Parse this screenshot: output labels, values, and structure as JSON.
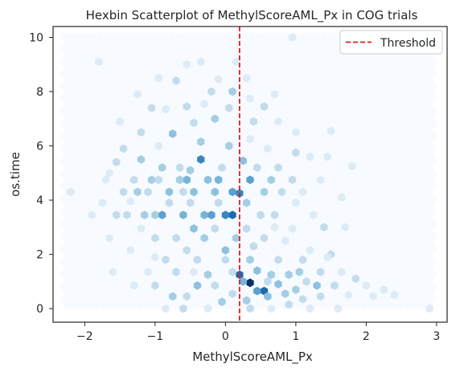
{
  "chart_data": {
    "type": "scatter",
    "subtype": "hexbin",
    "title": "Hexbin Scatterplot of MethylScoreAML_Px in COG trials",
    "xlabel": "MethylScoreAML_Px",
    "ylabel": "os.time",
    "xlim": [
      -2.45,
      3.15
    ],
    "ylim": [
      -0.5,
      10.4
    ],
    "xticks": [
      -2,
      -1,
      0,
      1,
      2,
      3
    ],
    "xtick_labels": [
      "−2",
      "−1",
      "0",
      "1",
      "2",
      "3"
    ],
    "yticks": [
      0,
      2,
      4,
      6,
      8,
      10
    ],
    "ytick_labels": [
      "0",
      "2",
      "4",
      "6",
      "8",
      "10"
    ],
    "grid": false,
    "colormap": "Blues",
    "hexbin_extent": {
      "x": [
        -2.3,
        2.95
      ],
      "y": [
        -0.05,
        10.05
      ]
    },
    "threshold": {
      "x": 0.2,
      "name": "Threshold",
      "color": "#e31a1c",
      "style": "dashed"
    },
    "legend": {
      "position": "top-right",
      "entries": [
        "Threshold"
      ]
    },
    "max_count": 10,
    "bins": [
      {
        "x": 0.35,
        "y": 0.95,
        "c": 10
      },
      {
        "x": 0.2,
        "y": 1.25,
        "c": 8
      },
      {
        "x": 0.55,
        "y": 0.65,
        "c": 8
      },
      {
        "x": 0.1,
        "y": 3.45,
        "c": 8
      },
      {
        "x": 0.0,
        "y": 3.45,
        "c": 7
      },
      {
        "x": -0.35,
        "y": 5.5,
        "c": 7
      },
      {
        "x": 0.2,
        "y": 4.25,
        "c": 7
      },
      {
        "x": 0.35,
        "y": 4.75,
        "c": 6
      },
      {
        "x": -0.9,
        "y": 3.45,
        "c": 6
      },
      {
        "x": -0.2,
        "y": 3.45,
        "c": 6
      },
      {
        "x": 0.1,
        "y": 4.3,
        "c": 6
      },
      {
        "x": 0.45,
        "y": 0.65,
        "c": 6
      },
      {
        "x": 0.25,
        "y": 1.0,
        "c": 5
      },
      {
        "x": -0.55,
        "y": 4.75,
        "c": 5
      },
      {
        "x": -0.1,
        "y": 4.75,
        "c": 5
      },
      {
        "x": -0.3,
        "y": 3.45,
        "c": 5
      },
      {
        "x": -0.6,
        "y": 3.45,
        "c": 5
      },
      {
        "x": -0.45,
        "y": 2.95,
        "c": 4
      },
      {
        "x": -0.75,
        "y": 6.45,
        "c": 4
      },
      {
        "x": 0.25,
        "y": 5.45,
        "c": 4
      },
      {
        "x": -0.8,
        "y": 4.3,
        "c": 4
      },
      {
        "x": -0.15,
        "y": 4.3,
        "c": 4
      },
      {
        "x": -0.25,
        "y": 4.75,
        "c": 4
      },
      {
        "x": -0.45,
        "y": 4.3,
        "c": 4
      },
      {
        "x": 0.0,
        "y": 2.15,
        "c": 4
      },
      {
        "x": 0.45,
        "y": 1.4,
        "c": 4
      },
      {
        "x": 1.3,
        "y": 0.85,
        "c": 4
      },
      {
        "x": -0.4,
        "y": 0.85,
        "c": 4
      },
      {
        "x": 0.6,
        "y": 0.45,
        "c": 4
      },
      {
        "x": 0.75,
        "y": 0.9,
        "c": 4
      },
      {
        "x": -1.05,
        "y": 4.75,
        "c": 3
      },
      {
        "x": -0.65,
        "y": 4.75,
        "c": 3
      },
      {
        "x": -1.0,
        "y": 3.45,
        "c": 3
      },
      {
        "x": -1.15,
        "y": 3.45,
        "c": 3
      },
      {
        "x": -1.25,
        "y": 4.3,
        "c": 3
      },
      {
        "x": -0.9,
        "y": 5.2,
        "c": 3
      },
      {
        "x": -1.2,
        "y": 5.5,
        "c": 3
      },
      {
        "x": 0.55,
        "y": 4.3,
        "c": 3
      },
      {
        "x": 0.65,
        "y": 4.75,
        "c": 3
      },
      {
        "x": 0.3,
        "y": 3.9,
        "c": 3
      },
      {
        "x": -0.3,
        "y": 2.6,
        "c": 3
      },
      {
        "x": -0.25,
        "y": 1.25,
        "c": 3
      },
      {
        "x": 0.15,
        "y": 2.6,
        "c": 3
      },
      {
        "x": 0.35,
        "y": 1.8,
        "c": 3
      },
      {
        "x": 0.9,
        "y": 1.25,
        "c": 3
      },
      {
        "x": 0.65,
        "y": 1.25,
        "c": 3
      },
      {
        "x": 1.05,
        "y": 1.35,
        "c": 3
      },
      {
        "x": 0.85,
        "y": 0.55,
        "c": 3
      },
      {
        "x": 1.0,
        "y": 0.7,
        "c": 3
      },
      {
        "x": -0.75,
        "y": 0.45,
        "c": 3
      },
      {
        "x": -0.05,
        "y": 0.25,
        "c": 3
      },
      {
        "x": 0.3,
        "y": 0.3,
        "c": 3
      },
      {
        "x": -0.35,
        "y": 6.15,
        "c": 3
      },
      {
        "x": 0.05,
        "y": 6.0,
        "c": 3
      },
      {
        "x": -0.15,
        "y": 7.0,
        "c": 3
      },
      {
        "x": 0.1,
        "y": 8.0,
        "c": 3
      },
      {
        "x": -0.5,
        "y": 5.1,
        "c": 3
      },
      {
        "x": -1.4,
        "y": 3.45,
        "c": 2
      },
      {
        "x": -1.55,
        "y": 3.45,
        "c": 2
      },
      {
        "x": -1.45,
        "y": 4.3,
        "c": 2
      },
      {
        "x": -1.3,
        "y": 4.75,
        "c": 2
      },
      {
        "x": -1.1,
        "y": 4.3,
        "c": 2
      },
      {
        "x": -0.95,
        "y": 4.75,
        "c": 2
      },
      {
        "x": -0.6,
        "y": 4.3,
        "c": 2
      },
      {
        "x": -0.65,
        "y": 5.2,
        "c": 2
      },
      {
        "x": -0.05,
        "y": 5.2,
        "c": 2
      },
      {
        "x": 0.45,
        "y": 5.2,
        "c": 2
      },
      {
        "x": 0.75,
        "y": 5.2,
        "c": 2
      },
      {
        "x": 0.8,
        "y": 4.3,
        "c": 2
      },
      {
        "x": 0.95,
        "y": 4.75,
        "c": 2
      },
      {
        "x": 0.5,
        "y": 3.45,
        "c": 2
      },
      {
        "x": 0.7,
        "y": 3.45,
        "c": 2
      },
      {
        "x": -0.8,
        "y": 3.9,
        "c": 2
      },
      {
        "x": -0.5,
        "y": 3.9,
        "c": 2
      },
      {
        "x": -0.1,
        "y": 3.9,
        "c": 2
      },
      {
        "x": -1.0,
        "y": 2.6,
        "c": 2
      },
      {
        "x": -0.7,
        "y": 2.6,
        "c": 2
      },
      {
        "x": -0.15,
        "y": 2.95,
        "c": 2
      },
      {
        "x": 0.3,
        "y": 2.95,
        "c": 2
      },
      {
        "x": -0.55,
        "y": 2.15,
        "c": 2
      },
      {
        "x": 0.4,
        "y": 2.3,
        "c": 2
      },
      {
        "x": 0.55,
        "y": 2.6,
        "c": 2
      },
      {
        "x": -0.85,
        "y": 1.8,
        "c": 2
      },
      {
        "x": -0.4,
        "y": 1.8,
        "c": 2
      },
      {
        "x": 0.0,
        "y": 1.8,
        "c": 2
      },
      {
        "x": 0.75,
        "y": 1.8,
        "c": 2
      },
      {
        "x": 1.1,
        "y": 1.8,
        "c": 2
      },
      {
        "x": -0.7,
        "y": 1.35,
        "c": 2
      },
      {
        "x": 0.1,
        "y": 1.35,
        "c": 2
      },
      {
        "x": 1.35,
        "y": 1.35,
        "c": 2
      },
      {
        "x": -1.0,
        "y": 0.85,
        "c": 2
      },
      {
        "x": -0.15,
        "y": 0.85,
        "c": 2
      },
      {
        "x": 0.6,
        "y": 1.0,
        "c": 2
      },
      {
        "x": 1.15,
        "y": 1.0,
        "c": 2
      },
      {
        "x": 1.55,
        "y": 0.85,
        "c": 2
      },
      {
        "x": -0.55,
        "y": 0.45,
        "c": 2
      },
      {
        "x": 0.1,
        "y": 0.55,
        "c": 2
      },
      {
        "x": 1.1,
        "y": 0.35,
        "c": 2
      },
      {
        "x": 1.35,
        "y": 0.45,
        "c": 2
      },
      {
        "x": -0.6,
        "y": 0.0,
        "c": 2
      },
      {
        "x": 0.35,
        "y": 0.0,
        "c": 2
      },
      {
        "x": 0.9,
        "y": 0.15,
        "c": 2
      },
      {
        "x": -1.2,
        "y": 6.5,
        "c": 2
      },
      {
        "x": -0.45,
        "y": 6.85,
        "c": 2
      },
      {
        "x": -1.05,
        "y": 7.4,
        "c": 2
      },
      {
        "x": -0.55,
        "y": 7.45,
        "c": 2
      },
      {
        "x": 0.05,
        "y": 7.4,
        "c": 2
      },
      {
        "x": 0.4,
        "y": 6.9,
        "c": 2
      },
      {
        "x": -0.2,
        "y": 8.0,
        "c": 2
      },
      {
        "x": 0.55,
        "y": 7.45,
        "c": 2
      },
      {
        "x": -1.45,
        "y": 5.9,
        "c": 2
      },
      {
        "x": 1.0,
        "y": 5.75,
        "c": 2
      },
      {
        "x": 1.5,
        "y": 2.0,
        "c": 2
      },
      {
        "x": 1.85,
        "y": 1.1,
        "c": 2
      },
      {
        "x": -1.55,
        "y": 5.4,
        "c": 2
      },
      {
        "x": 1.4,
        "y": 3.0,
        "c": 2
      },
      {
        "x": -0.7,
        "y": 8.4,
        "c": 2
      },
      {
        "x": -2.2,
        "y": 4.3,
        "c": 1
      },
      {
        "x": -1.9,
        "y": 3.45,
        "c": 1
      },
      {
        "x": -1.7,
        "y": 4.75,
        "c": 1
      },
      {
        "x": -1.75,
        "y": 3.9,
        "c": 1
      },
      {
        "x": -1.65,
        "y": 2.6,
        "c": 1
      },
      {
        "x": -1.35,
        "y": 2.15,
        "c": 1
      },
      {
        "x": -1.6,
        "y": 1.35,
        "c": 1
      },
      {
        "x": -1.3,
        "y": 0.85,
        "c": 1
      },
      {
        "x": -1.1,
        "y": 1.35,
        "c": 1
      },
      {
        "x": -1.2,
        "y": 2.95,
        "c": 1
      },
      {
        "x": -1.65,
        "y": 5.0,
        "c": 1
      },
      {
        "x": -1.5,
        "y": 6.9,
        "c": 1
      },
      {
        "x": -1.25,
        "y": 7.9,
        "c": 1
      },
      {
        "x": -0.95,
        "y": 8.5,
        "c": 1
      },
      {
        "x": -0.55,
        "y": 9.0,
        "c": 1
      },
      {
        "x": -1.8,
        "y": 9.1,
        "c": 1
      },
      {
        "x": -0.35,
        "y": 9.1,
        "c": 1
      },
      {
        "x": 0.15,
        "y": 9.1,
        "c": 1
      },
      {
        "x": 0.3,
        "y": 8.5,
        "c": 1
      },
      {
        "x": -0.1,
        "y": 8.45,
        "c": 1
      },
      {
        "x": -0.85,
        "y": 7.35,
        "c": 1
      },
      {
        "x": -0.3,
        "y": 7.55,
        "c": 1
      },
      {
        "x": 0.35,
        "y": 7.75,
        "c": 1
      },
      {
        "x": 0.75,
        "y": 6.9,
        "c": 1
      },
      {
        "x": 1.0,
        "y": 6.5,
        "c": 1
      },
      {
        "x": 1.2,
        "y": 5.6,
        "c": 1
      },
      {
        "x": 1.45,
        "y": 5.6,
        "c": 1
      },
      {
        "x": 1.35,
        "y": 4.75,
        "c": 1
      },
      {
        "x": 1.1,
        "y": 4.3,
        "c": 1
      },
      {
        "x": 1.0,
        "y": 3.9,
        "c": 1
      },
      {
        "x": 1.25,
        "y": 3.45,
        "c": 1
      },
      {
        "x": 0.95,
        "y": 2.95,
        "c": 1
      },
      {
        "x": 1.2,
        "y": 2.15,
        "c": 1
      },
      {
        "x": 1.7,
        "y": 3.0,
        "c": 1
      },
      {
        "x": 1.65,
        "y": 1.35,
        "c": 1
      },
      {
        "x": 1.75,
        "y": 0.5,
        "c": 1
      },
      {
        "x": 1.6,
        "y": 0.0,
        "c": 1
      },
      {
        "x": 2.0,
        "y": 0.85,
        "c": 1
      },
      {
        "x": 2.1,
        "y": 0.45,
        "c": 1
      },
      {
        "x": 2.25,
        "y": 0.7,
        "c": 1
      },
      {
        "x": 2.4,
        "y": 0.5,
        "c": 1
      },
      {
        "x": 1.5,
        "y": 6.55,
        "c": 1
      },
      {
        "x": 1.8,
        "y": 5.25,
        "c": 1
      },
      {
        "x": 1.65,
        "y": 4.1,
        "c": 1
      },
      {
        "x": 2.9,
        "y": 0.0,
        "c": 1
      },
      {
        "x": 0.95,
        "y": 10.0,
        "c": 1
      },
      {
        "x": -0.85,
        "y": 0.0,
        "c": 1
      },
      {
        "x": -0.25,
        "y": 0.0,
        "c": 1
      },
      {
        "x": 0.65,
        "y": 0.0,
        "c": 1
      },
      {
        "x": 1.2,
        "y": 0.0,
        "c": 1
      },
      {
        "x": 1.45,
        "y": 1.9,
        "c": 1
      },
      {
        "x": 0.85,
        "y": 2.5,
        "c": 1
      },
      {
        "x": 0.7,
        "y": 3.0,
        "c": 1
      },
      {
        "x": -0.95,
        "y": 6.0,
        "c": 1
      },
      {
        "x": -1.35,
        "y": 3.95,
        "c": 1
      },
      {
        "x": -1.0,
        "y": 1.9,
        "c": 1
      },
      {
        "x": -0.45,
        "y": 1.35,
        "c": 1
      },
      {
        "x": 0.6,
        "y": 5.9,
        "c": 1
      },
      {
        "x": 0.7,
        "y": 7.9,
        "c": 1
      },
      {
        "x": 0.35,
        "y": 6.25,
        "c": 1
      }
    ]
  }
}
